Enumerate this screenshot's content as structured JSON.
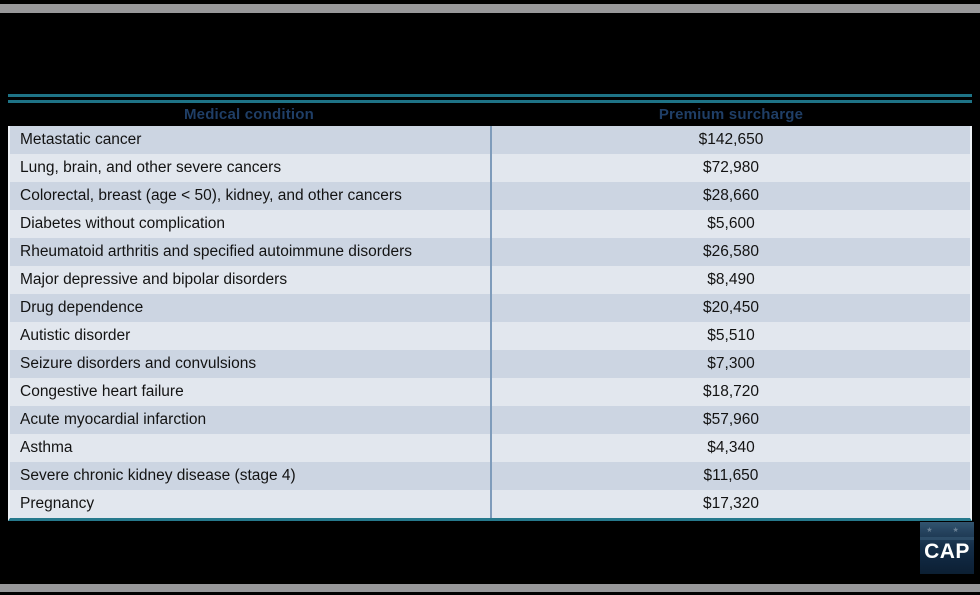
{
  "chart_data": {
    "type": "table",
    "columns": [
      "Medical condition",
      "Premium surcharge"
    ],
    "rows": [
      {
        "condition": "Metastatic cancer",
        "surcharge": "$142,650"
      },
      {
        "condition": "Lung, brain, and other severe cancers",
        "surcharge": "$72,980"
      },
      {
        "condition": "Colorectal, breast (age < 50), kidney, and other cancers",
        "surcharge": "$28,660"
      },
      {
        "condition": "Diabetes without complication",
        "surcharge": "$5,600"
      },
      {
        "condition": "Rheumatoid arthritis and specified autoimmune disorders",
        "surcharge": "$26,580"
      },
      {
        "condition": "Major depressive and bipolar disorders",
        "surcharge": "$8,490"
      },
      {
        "condition": "Drug dependence",
        "surcharge": "$20,450"
      },
      {
        "condition": "Autistic disorder",
        "surcharge": "$5,510"
      },
      {
        "condition": "Seizure disorders and convulsions",
        "surcharge": "$7,300"
      },
      {
        "condition": "Congestive heart failure",
        "surcharge": "$18,720"
      },
      {
        "condition": "Acute myocardial infarction",
        "surcharge": "$57,960"
      },
      {
        "condition": "Asthma",
        "surcharge": "$4,340"
      },
      {
        "condition": "Severe chronic kidney disease (stage 4)",
        "surcharge": "$11,650"
      },
      {
        "condition": "Pregnancy",
        "surcharge": "$17,320"
      }
    ],
    "surcharge_values": [
      142650,
      72980,
      28660,
      5600,
      26580,
      8490,
      20450,
      5510,
      7300,
      18720,
      57960,
      4340,
      11650,
      17320
    ],
    "layout_hints": {
      "row_striping": true,
      "column_1_align": "left",
      "column_2_align": "center"
    }
  },
  "logo": {
    "label": "CAP",
    "stars": "★ ★ ★"
  },
  "colors": {
    "background": "#000000",
    "teal_rule": "#1e7386",
    "header_text": "#1f3e66",
    "row_dark": "#ccd5e2",
    "row_light": "#e2e7ee",
    "column_divider": "#7f9cbb",
    "gray_bar": "#98989a",
    "logo_navy": "#12283e"
  }
}
